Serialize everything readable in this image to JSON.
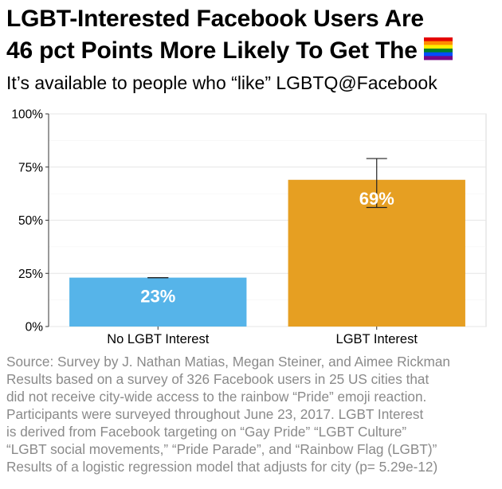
{
  "title": {
    "line1": "LGBT-Interested Facebook Users Are",
    "line2": "46 pct Points More Likely To Get The"
  },
  "flag_colors": [
    "#e40303",
    "#ff8c00",
    "#ffed00",
    "#008026",
    "#004dff",
    "#750787"
  ],
  "subtitle": "It’s available to people who “like” LGBTQ@Facebook",
  "chart_data": {
    "type": "bar",
    "categories": [
      "No LGBT Interest",
      "LGBT Interest"
    ],
    "values": [
      23,
      69
    ],
    "value_labels": [
      "23%",
      "69%"
    ],
    "error_low": [
      23,
      56
    ],
    "error_high": [
      23,
      79
    ],
    "colors": [
      "#56b4e9",
      "#e69f22"
    ],
    "ylim": [
      0,
      100
    ],
    "yticks": [
      0,
      25,
      50,
      75,
      100
    ],
    "ytick_labels": [
      "0%",
      "25%",
      "50%",
      "75%",
      "100%"
    ],
    "xlabel": "",
    "ylabel": "",
    "grid": true
  },
  "caption": {
    "lines": [
      "Source: Survey by J. Nathan Matias, Megan Steiner, and Aimee Rickman",
      "Results based on a survey of 326 Facebook users in 25 US cities that",
      "did not receive city-wide access to the rainbow “Pride” emoji reaction.",
      "Participants were surveyed throughout June 23, 2017. LGBT Interest",
      "is derived from Facebook targeting on “Gay Pride” “LGBT Culture”",
      "“LGBT social movements,” “Pride Parade”, and “Rainbow Flag (LGBT)”",
      "Results of a  logistic regression model that adjusts for city (p= 5.29e-12)"
    ]
  }
}
